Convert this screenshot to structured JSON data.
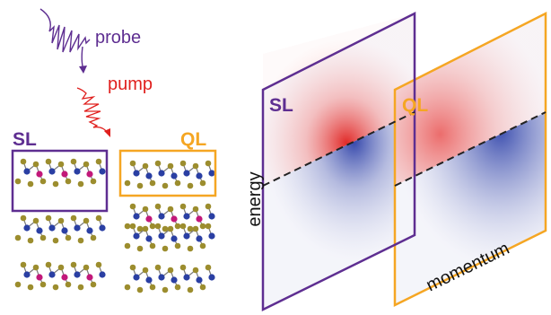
{
  "legend": {
    "probe": "probe",
    "pump": "pump"
  },
  "structures": {
    "sl": "SL",
    "ql": "QL"
  },
  "panels": [
    {
      "label": "SL"
    },
    {
      "label": "QL"
    }
  ],
  "axes": {
    "y": "energy",
    "x": "momentum"
  }
}
